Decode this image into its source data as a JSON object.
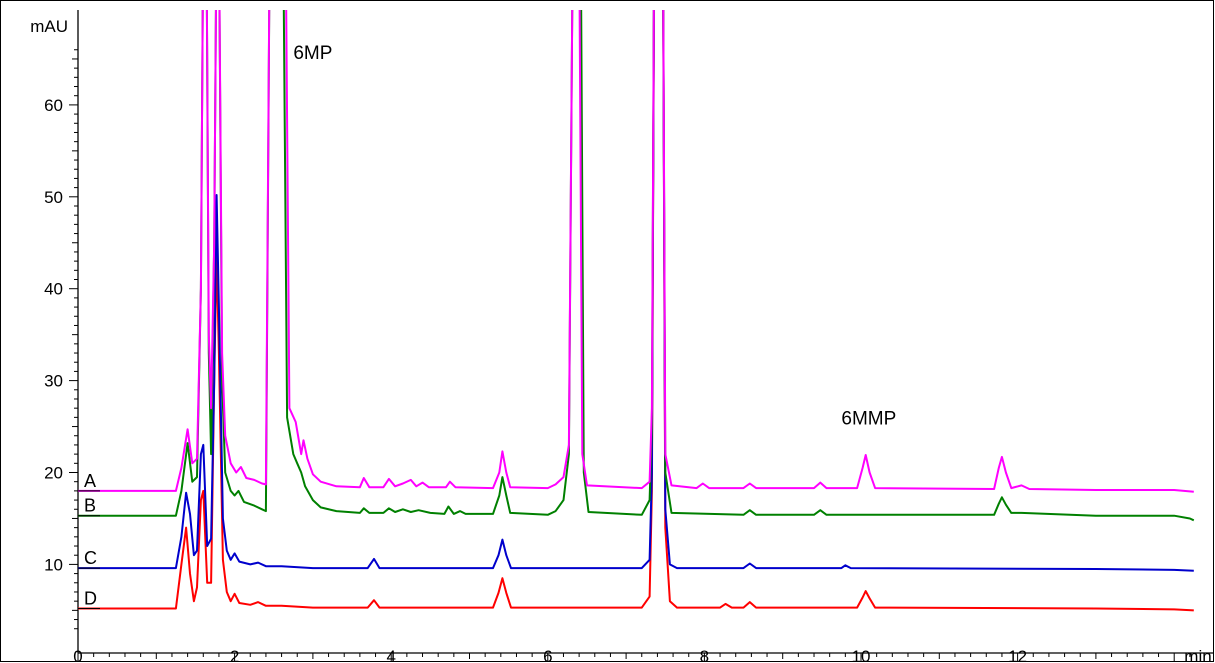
{
  "chart_data": {
    "type": "line",
    "title": "",
    "xlabel": "min",
    "ylabel": "mAU",
    "xlim": [
      0,
      14.25
    ],
    "ylim": [
      2.5,
      67
    ],
    "x_ticks": [
      0,
      2,
      4,
      6,
      8,
      10,
      12
    ],
    "y_ticks": [
      10,
      20,
      30,
      40,
      50,
      60
    ],
    "grid": false,
    "legend": "none",
    "annotations": [
      {
        "text": "6MP",
        "x": 3.0,
        "y": 65.0
      },
      {
        "text": "6MMP",
        "x": 10.1,
        "y": 25.2
      }
    ],
    "series": [
      {
        "name": "A",
        "color": "#ff00ff",
        "baseline": 18.0,
        "points": [
          [
            0,
            18.0
          ],
          [
            1.25,
            18.0
          ],
          [
            1.32,
            20.5
          ],
          [
            1.4,
            24.7
          ],
          [
            1.46,
            21.0
          ],
          [
            1.52,
            21.5
          ],
          [
            1.57,
            40
          ],
          [
            1.6,
            80
          ],
          [
            1.64,
            80
          ],
          [
            1.67,
            35
          ],
          [
            1.7,
            27
          ],
          [
            1.74,
            45
          ],
          [
            1.77,
            80
          ],
          [
            1.8,
            80
          ],
          [
            1.84,
            33
          ],
          [
            1.88,
            24
          ],
          [
            1.95,
            21.0
          ],
          [
            2.02,
            20.0
          ],
          [
            2.08,
            20.6
          ],
          [
            2.15,
            19.4
          ],
          [
            2.25,
            19.2
          ],
          [
            2.35,
            18.8
          ],
          [
            2.4,
            18.7
          ],
          [
            2.45,
            80
          ],
          [
            2.65,
            80
          ],
          [
            2.7,
            27.0
          ],
          [
            2.78,
            25.5
          ],
          [
            2.85,
            22.0
          ],
          [
            2.88,
            23.5
          ],
          [
            2.93,
            21.5
          ],
          [
            3.0,
            19.8
          ],
          [
            3.1,
            19.0
          ],
          [
            3.3,
            18.5
          ],
          [
            3.6,
            18.4
          ],
          [
            3.65,
            19.4
          ],
          [
            3.72,
            18.4
          ],
          [
            3.9,
            18.4
          ],
          [
            3.97,
            19.3
          ],
          [
            4.05,
            18.5
          ],
          [
            4.15,
            18.8
          ],
          [
            4.25,
            19.2
          ],
          [
            4.32,
            18.5
          ],
          [
            4.4,
            18.9
          ],
          [
            4.48,
            18.4
          ],
          [
            4.7,
            18.4
          ],
          [
            4.75,
            19.0
          ],
          [
            4.82,
            18.4
          ],
          [
            5.3,
            18.3
          ],
          [
            5.38,
            20.0
          ],
          [
            5.42,
            22.3
          ],
          [
            5.47,
            20.0
          ],
          [
            5.52,
            18.4
          ],
          [
            6.0,
            18.3
          ],
          [
            6.1,
            18.7
          ],
          [
            6.2,
            19.5
          ],
          [
            6.27,
            23.0
          ],
          [
            6.32,
            80
          ],
          [
            6.4,
            80
          ],
          [
            6.44,
            22.0
          ],
          [
            6.5,
            18.6
          ],
          [
            7.2,
            18.3
          ],
          [
            7.3,
            19.0
          ],
          [
            7.33,
            27.0
          ],
          [
            7.36,
            80
          ],
          [
            7.47,
            80
          ],
          [
            7.5,
            22.0
          ],
          [
            7.58,
            18.6
          ],
          [
            7.9,
            18.3
          ],
          [
            7.98,
            18.8
          ],
          [
            8.06,
            18.3
          ],
          [
            8.5,
            18.3
          ],
          [
            8.58,
            18.8
          ],
          [
            8.66,
            18.3
          ],
          [
            9.4,
            18.3
          ],
          [
            9.48,
            18.9
          ],
          [
            9.56,
            18.3
          ],
          [
            9.95,
            18.3
          ],
          [
            10.02,
            20.5
          ],
          [
            10.06,
            21.9
          ],
          [
            10.11,
            20.0
          ],
          [
            10.18,
            18.3
          ],
          [
            11.7,
            18.2
          ],
          [
            11.76,
            20.5
          ],
          [
            11.8,
            21.7
          ],
          [
            11.85,
            20.0
          ],
          [
            11.92,
            18.3
          ],
          [
            12.05,
            18.6
          ],
          [
            12.15,
            18.2
          ],
          [
            13.0,
            18.1
          ],
          [
            14.0,
            18.1
          ],
          [
            14.25,
            17.9
          ]
        ]
      },
      {
        "name": "B",
        "color": "#008000",
        "baseline": 15.3,
        "points": [
          [
            0,
            15.3
          ],
          [
            1.25,
            15.3
          ],
          [
            1.32,
            18.0
          ],
          [
            1.4,
            23.2
          ],
          [
            1.46,
            19.0
          ],
          [
            1.52,
            19.5
          ],
          [
            1.57,
            40
          ],
          [
            1.6,
            80
          ],
          [
            1.64,
            80
          ],
          [
            1.67,
            33
          ],
          [
            1.7,
            22
          ],
          [
            1.74,
            45
          ],
          [
            1.77,
            80
          ],
          [
            1.8,
            80
          ],
          [
            1.84,
            30
          ],
          [
            1.88,
            20
          ],
          [
            1.95,
            18.0
          ],
          [
            2.0,
            17.5
          ],
          [
            2.05,
            18.0
          ],
          [
            2.12,
            16.8
          ],
          [
            2.25,
            16.4
          ],
          [
            2.35,
            16.0
          ],
          [
            2.4,
            15.8
          ],
          [
            2.45,
            80
          ],
          [
            2.62,
            80
          ],
          [
            2.67,
            26.0
          ],
          [
            2.75,
            22.0
          ],
          [
            2.8,
            21.0
          ],
          [
            2.85,
            20.0
          ],
          [
            2.9,
            18.5
          ],
          [
            3.0,
            17.0
          ],
          [
            3.1,
            16.2
          ],
          [
            3.3,
            15.8
          ],
          [
            3.6,
            15.6
          ],
          [
            3.65,
            16.1
          ],
          [
            3.72,
            15.6
          ],
          [
            3.9,
            15.6
          ],
          [
            3.97,
            16.1
          ],
          [
            4.05,
            15.7
          ],
          [
            4.15,
            16.0
          ],
          [
            4.25,
            15.7
          ],
          [
            4.35,
            15.9
          ],
          [
            4.5,
            15.6
          ],
          [
            4.68,
            15.5
          ],
          [
            4.73,
            16.3
          ],
          [
            4.8,
            15.5
          ],
          [
            4.88,
            15.8
          ],
          [
            4.95,
            15.5
          ],
          [
            5.3,
            15.5
          ],
          [
            5.38,
            17.5
          ],
          [
            5.42,
            19.5
          ],
          [
            5.47,
            17.5
          ],
          [
            5.52,
            15.6
          ],
          [
            6.0,
            15.4
          ],
          [
            6.1,
            15.8
          ],
          [
            6.2,
            17.0
          ],
          [
            6.27,
            22.0
          ],
          [
            6.32,
            80
          ],
          [
            6.42,
            80
          ],
          [
            6.46,
            20.0
          ],
          [
            6.52,
            15.7
          ],
          [
            7.2,
            15.4
          ],
          [
            7.3,
            17.0
          ],
          [
            7.33,
            25.0
          ],
          [
            7.36,
            80
          ],
          [
            7.47,
            80
          ],
          [
            7.5,
            20.0
          ],
          [
            7.58,
            15.6
          ],
          [
            8.5,
            15.4
          ],
          [
            8.58,
            15.9
          ],
          [
            8.66,
            15.4
          ],
          [
            9.4,
            15.4
          ],
          [
            9.48,
            15.9
          ],
          [
            9.56,
            15.4
          ],
          [
            11.7,
            15.4
          ],
          [
            11.76,
            16.6
          ],
          [
            11.8,
            17.3
          ],
          [
            11.85,
            16.5
          ],
          [
            11.92,
            15.6
          ],
          [
            12.05,
            15.6
          ],
          [
            13.0,
            15.3
          ],
          [
            14.0,
            15.3
          ],
          [
            14.2,
            15.0
          ],
          [
            14.25,
            14.8
          ]
        ]
      },
      {
        "name": "C",
        "color": "#0000cc",
        "baseline": 9.6,
        "points": [
          [
            0,
            9.6
          ],
          [
            1.25,
            9.6
          ],
          [
            1.32,
            13.0
          ],
          [
            1.38,
            17.8
          ],
          [
            1.43,
            15.5
          ],
          [
            1.48,
            11.0
          ],
          [
            1.52,
            11.5
          ],
          [
            1.57,
            22.0
          ],
          [
            1.6,
            23.0
          ],
          [
            1.65,
            12.0
          ],
          [
            1.7,
            12.8
          ],
          [
            1.74,
            30.0
          ],
          [
            1.77,
            50.2
          ],
          [
            1.8,
            38.0
          ],
          [
            1.85,
            15.0
          ],
          [
            1.9,
            11.5
          ],
          [
            1.95,
            10.5
          ],
          [
            2.0,
            11.2
          ],
          [
            2.06,
            10.3
          ],
          [
            2.2,
            10.0
          ],
          [
            2.3,
            10.2
          ],
          [
            2.4,
            9.8
          ],
          [
            2.6,
            9.8
          ],
          [
            3.0,
            9.6
          ],
          [
            3.7,
            9.6
          ],
          [
            3.78,
            10.6
          ],
          [
            3.85,
            9.6
          ],
          [
            5.3,
            9.6
          ],
          [
            5.37,
            11.0
          ],
          [
            5.42,
            12.7
          ],
          [
            5.47,
            11.0
          ],
          [
            5.53,
            9.6
          ],
          [
            7.2,
            9.6
          ],
          [
            7.3,
            10.5
          ],
          [
            7.33,
            20.0
          ],
          [
            7.36,
            80
          ],
          [
            7.47,
            80
          ],
          [
            7.5,
            16.0
          ],
          [
            7.56,
            10.0
          ],
          [
            7.65,
            9.6
          ],
          [
            8.5,
            9.6
          ],
          [
            8.58,
            10.1
          ],
          [
            8.66,
            9.6
          ],
          [
            9.75,
            9.6
          ],
          [
            9.8,
            9.9
          ],
          [
            9.87,
            9.6
          ],
          [
            13.0,
            9.5
          ],
          [
            14.0,
            9.4
          ],
          [
            14.25,
            9.3
          ]
        ]
      },
      {
        "name": "D",
        "color": "#ff0000",
        "baseline": 5.2,
        "points": [
          [
            0,
            5.2
          ],
          [
            1.25,
            5.2
          ],
          [
            1.32,
            10.0
          ],
          [
            1.38,
            14.0
          ],
          [
            1.43,
            9.0
          ],
          [
            1.48,
            6.0
          ],
          [
            1.52,
            7.5
          ],
          [
            1.57,
            17.0
          ],
          [
            1.6,
            18.0
          ],
          [
            1.65,
            8.0
          ],
          [
            1.7,
            8.0
          ],
          [
            1.74,
            30.0
          ],
          [
            1.77,
            43.8
          ],
          [
            1.8,
            33.0
          ],
          [
            1.85,
            10.5
          ],
          [
            1.9,
            7.0
          ],
          [
            1.95,
            6.0
          ],
          [
            2.0,
            6.8
          ],
          [
            2.06,
            5.8
          ],
          [
            2.2,
            5.6
          ],
          [
            2.3,
            5.9
          ],
          [
            2.4,
            5.5
          ],
          [
            2.6,
            5.5
          ],
          [
            3.0,
            5.3
          ],
          [
            3.7,
            5.3
          ],
          [
            3.78,
            6.1
          ],
          [
            3.85,
            5.3
          ],
          [
            5.3,
            5.3
          ],
          [
            5.37,
            6.9
          ],
          [
            5.42,
            8.5
          ],
          [
            5.47,
            6.9
          ],
          [
            5.53,
            5.3
          ],
          [
            7.2,
            5.3
          ],
          [
            7.3,
            6.5
          ],
          [
            7.33,
            18.0
          ],
          [
            7.36,
            80
          ],
          [
            7.47,
            80
          ],
          [
            7.5,
            14.0
          ],
          [
            7.56,
            6.0
          ],
          [
            7.65,
            5.3
          ],
          [
            8.2,
            5.3
          ],
          [
            8.27,
            5.7
          ],
          [
            8.35,
            5.3
          ],
          [
            8.5,
            5.3
          ],
          [
            8.58,
            5.9
          ],
          [
            8.66,
            5.3
          ],
          [
            9.95,
            5.3
          ],
          [
            10.02,
            6.4
          ],
          [
            10.06,
            7.1
          ],
          [
            10.11,
            6.3
          ],
          [
            10.18,
            5.3
          ],
          [
            13.0,
            5.2
          ],
          [
            14.0,
            5.1
          ],
          [
            14.25,
            5.0
          ]
        ]
      }
    ]
  }
}
